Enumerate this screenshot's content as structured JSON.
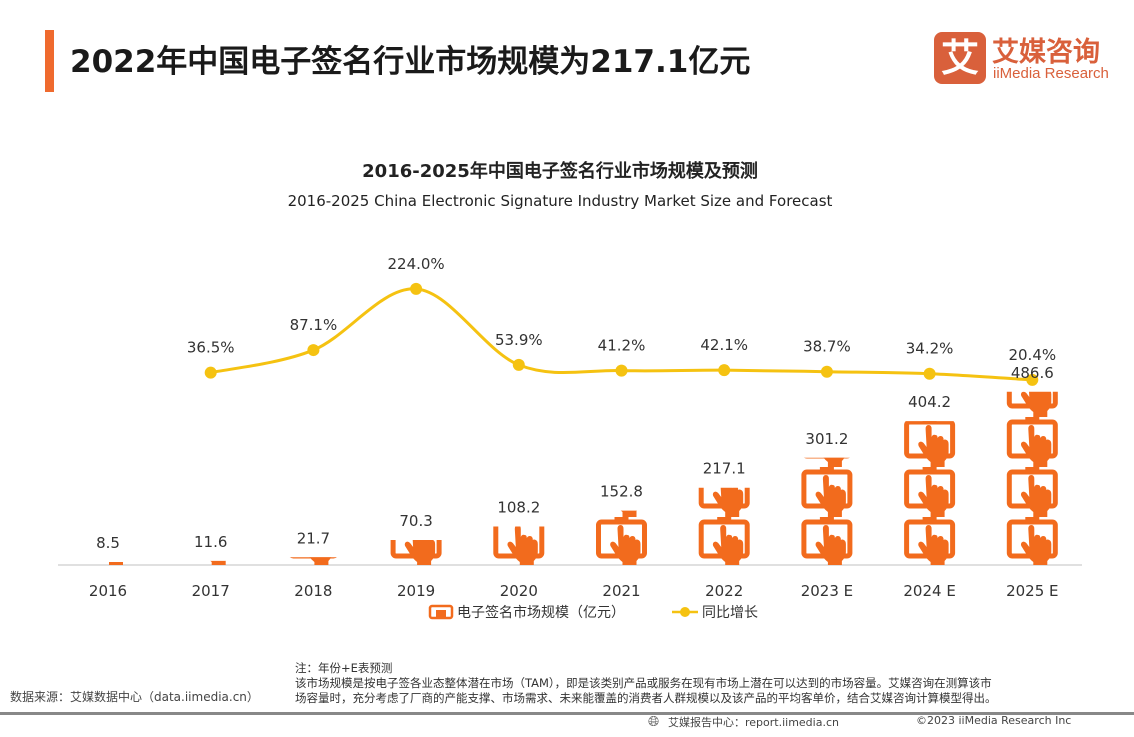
{
  "header": {
    "title": "2022年中国电子签名行业市场规模为217.1亿元",
    "logo_cn": "艾媒咨询",
    "logo_en": "iiMedia Research",
    "logo_mark": "艾"
  },
  "colors": {
    "accent": "#ef6a2e",
    "bar": "#f26b1d",
    "line": "#f5c211",
    "logo": "#d9603b"
  },
  "chart_data": {
    "type": "bar",
    "title": "2016-2025年中国电子签名行业市场规模及预测",
    "subtitle": "2016-2025 China Electronic Signature Industry Market Size and Forecast",
    "categories": [
      "2016",
      "2017",
      "2018",
      "2019",
      "2020",
      "2021",
      "2022",
      "2023 E",
      "2024 E",
      "2025 E"
    ],
    "series": [
      {
        "name": "电子签名市场规模（亿元）",
        "type": "pictograph-bar",
        "icon": "tablet-touch-icon",
        "values": [
          8.5,
          11.6,
          21.7,
          70.3,
          108.2,
          152.8,
          217.1,
          301.2,
          404.2,
          486.6
        ],
        "labels": [
          "8.5",
          "11.6",
          "21.7",
          "70.3",
          "108.2",
          "152.8",
          "217.1",
          "301.2",
          "404.2",
          "486.6"
        ]
      },
      {
        "name": "同比增长",
        "type": "line",
        "smooth": true,
        "values": [
          null,
          36.5,
          87.1,
          224.0,
          53.9,
          41.2,
          42.1,
          38.7,
          34.2,
          20.4
        ],
        "labels": [
          "",
          "36.5%",
          "87.1%",
          "224.0%",
          "53.9%",
          "41.2%",
          "42.1%",
          "38.7%",
          "34.2%",
          "20.4%"
        ]
      }
    ],
    "legend_position": "bottom",
    "grid": false
  },
  "footer": {
    "source": "数据来源：艾媒数据中心（data.iimedia.cn）",
    "note_1": "注：年份+E表预测",
    "note_2": "该市场规模是按电子签各业态整体潜在市场（TAM），即是该类别产品或服务在现有市场上潜在可以达到的市场容量。艾媒咨询在测算该市",
    "note_3": "场容量时，充分考虑了厂商的产能支撑、市场需求、未来能覆盖的消费者人群规模以及该产品的平均客单价，结合艾媒咨询计算模型得出。",
    "report_center": "艾媒报告中心：report.iimedia.cn",
    "copyright": "©2023  iiMedia Research Inc"
  }
}
